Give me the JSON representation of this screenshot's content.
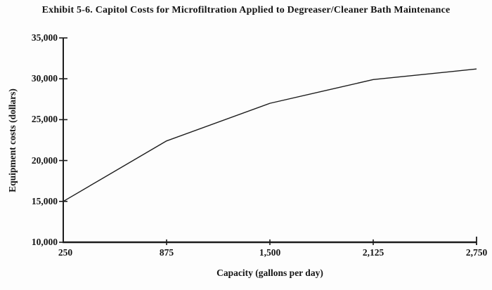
{
  "chart_data": {
    "type": "line",
    "title": "Exhibit 5-6. Capitol Costs for Microfiltration Applied to Degreaser/Cleaner Bath Maintenance",
    "xlabel": "Capacity (gallons per day)",
    "ylabel": "Equipment costs (dollars)",
    "x": [
      250,
      875,
      1500,
      2125,
      2750
    ],
    "y": [
      15000,
      22400,
      27000,
      29900,
      31200
    ],
    "series": [
      {
        "name": "Equipment costs",
        "x": [
          250,
          875,
          1500,
          2125,
          2750
        ],
        "values": [
          15000,
          22400,
          27000,
          29900,
          31200
        ]
      }
    ],
    "xlim": [
      250,
      2750
    ],
    "ylim": [
      10000,
      35000
    ],
    "x_tick_values": [
      250,
      875,
      1500,
      2125,
      2750
    ],
    "x_tick_labels": [
      "250",
      "875",
      "1,500",
      "2,125",
      "2,750"
    ],
    "y_tick_values": [
      35000,
      30000,
      25000,
      20000,
      15000,
      10000
    ],
    "y_tick_labels": [
      "35,000",
      "30,000",
      "25,000",
      "20,000",
      "15,000",
      "10,000"
    ],
    "grid": false,
    "legend": false,
    "line_color": "#1c1c1c",
    "axis_color": "#1c1c1c",
    "background_color": "#fdfdfd"
  }
}
